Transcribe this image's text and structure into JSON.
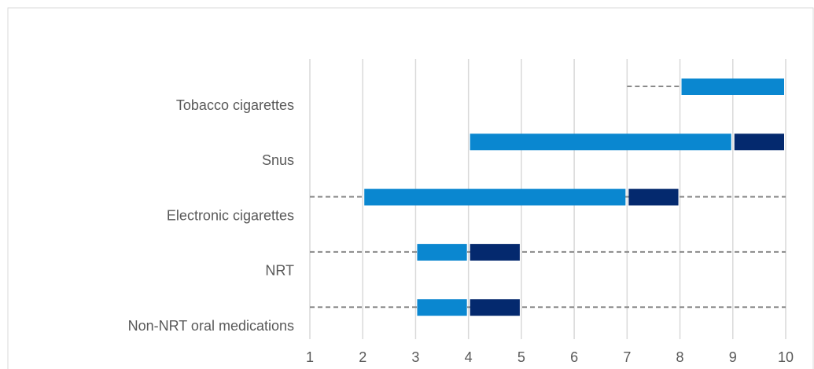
{
  "chart_data": {
    "type": "floating_bar",
    "categories": [
      "Tobacco cigarettes",
      "Snus",
      "Electronic cigarettes",
      "NRT",
      "Non-NRT oral medications"
    ],
    "series": [
      {
        "color": "#8a8a8a",
        "dashed": true,
        "ranges": [
          [
            7,
            8
          ],
          null,
          [
            1,
            10
          ],
          [
            1,
            10
          ],
          [
            1,
            10
          ]
        ]
      },
      {
        "color": "#0a87d0",
        "ranges": [
          [
            8,
            10
          ],
          [
            4,
            9
          ],
          [
            2,
            7
          ],
          [
            3,
            4
          ],
          [
            3,
            4
          ]
        ]
      },
      {
        "color": "#04296e",
        "ranges": [
          null,
          [
            9,
            10
          ],
          [
            7,
            8
          ],
          [
            4,
            5
          ],
          [
            4,
            5
          ]
        ]
      }
    ],
    "xlim": [
      1,
      10
    ],
    "xticks": [
      1,
      2,
      3,
      4,
      5,
      6,
      7,
      8,
      9,
      10
    ],
    "grid": true
  }
}
